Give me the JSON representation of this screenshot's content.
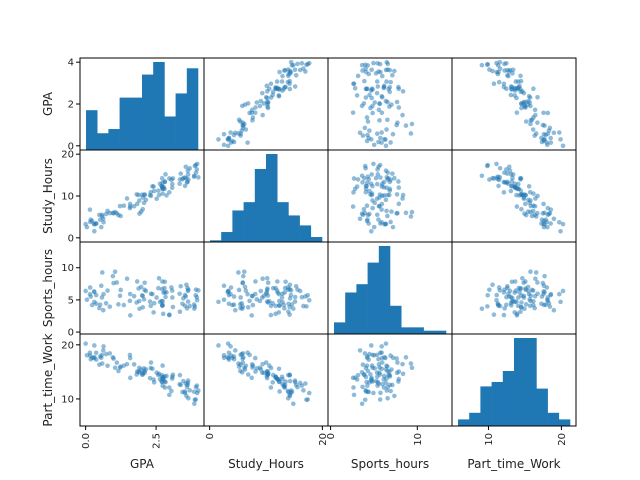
{
  "chart_data": {
    "type": "scatter",
    "title": "",
    "variables": [
      "GPA",
      "Study_Hours",
      "Sports_hours",
      "Part_time_Work"
    ],
    "color": "#1f77b4",
    "ranges": {
      "GPA": [
        -0.2,
        4.2
      ],
      "Study_Hours": [
        -1,
        21
      ],
      "Sports_hours": [
        -0.3,
        14
      ],
      "Part_time_Work": [
        5,
        22
      ]
    },
    "y_ticks": {
      "GPA": [
        "0",
        "2",
        "4"
      ],
      "Study_Hours": [
        "0",
        "10",
        "20"
      ],
      "Sports_hours": [
        "0",
        "5",
        "10"
      ],
      "Part_time_Work": [
        "10",
        "20"
      ]
    },
    "x_ticks": {
      "GPA": [
        "0.0",
        "2.5"
      ],
      "Study_Hours": [
        "0",
        "20"
      ],
      "Sports_hours": [
        "0",
        "10"
      ],
      "Part_time_Work": [
        "10",
        "20"
      ]
    },
    "histograms": {
      "GPA": [
        19,
        8,
        10,
        25,
        25,
        36,
        42,
        16,
        27,
        39
      ],
      "Study_Hours": [
        1,
        6,
        19,
        24,
        44,
        53,
        24,
        16,
        10,
        3
      ],
      "Sports_hours": [
        7,
        25,
        30,
        43,
        53,
        17,
        4,
        4,
        2,
        2
      ],
      "Part_time_Work": [
        3,
        6,
        18,
        20,
        25,
        40,
        40,
        17,
        6,
        3
      ]
    }
  }
}
